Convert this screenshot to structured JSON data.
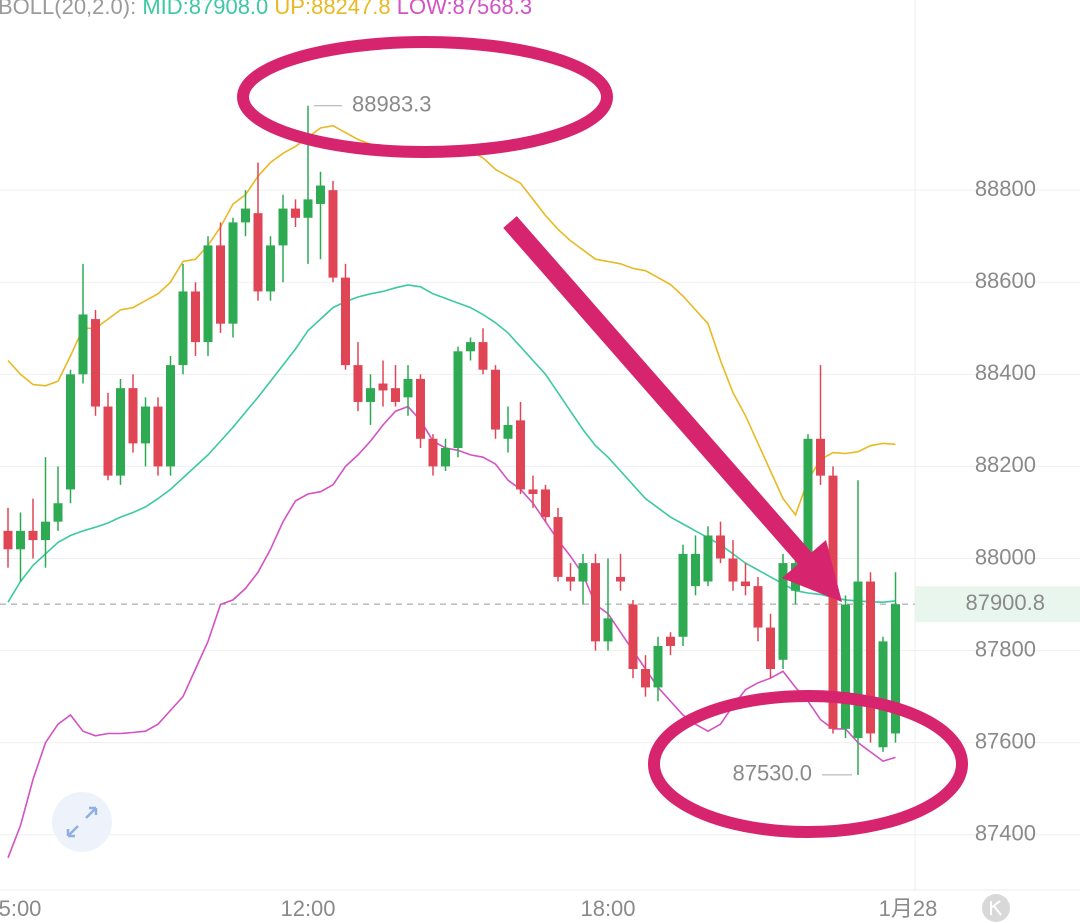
{
  "chart_data": {
    "type": "candlestick",
    "indicator": {
      "label": "BOLL(20,2.0):",
      "items": [
        "MID:87908.0",
        "UP:88247.8",
        "LOW:87568.3"
      ]
    },
    "categories": [
      "5:00",
      null,
      null,
      null,
      null,
      null,
      null,
      null,
      null,
      null,
      null,
      null,
      null,
      null,
      null,
      null,
      null,
      null,
      null,
      null,
      null,
      null,
      null,
      null,
      "12:00",
      null,
      null,
      null,
      null,
      null,
      null,
      null,
      null,
      null,
      null,
      null,
      null,
      null,
      null,
      null,
      null,
      null,
      null,
      null,
      null,
      null,
      null,
      null,
      "18:00",
      null,
      null,
      null,
      null,
      null,
      null,
      null,
      null,
      null,
      null,
      null,
      null,
      null,
      null,
      null,
      null,
      null,
      null,
      null,
      null,
      null,
      null,
      null,
      "1月28"
    ],
    "candles": {
      "up_color": "#2eaa53",
      "down_color": "#e04556",
      "open": [
        88060,
        88020,
        88060,
        88040,
        88080,
        88150,
        88400,
        88520,
        88330,
        88180,
        88370,
        88250,
        88330,
        88200,
        88420,
        88580,
        88470,
        88680,
        88510,
        88730,
        88750,
        88580,
        88680,
        88760,
        88740,
        88770,
        88800,
        88610,
        88420,
        88340,
        88380,
        88370,
        88350,
        88390,
        88260,
        88200,
        88240,
        88450,
        88470,
        88410,
        88260,
        88300,
        88150,
        88150,
        88090,
        87960,
        87950,
        87990,
        87820,
        87960,
        87900,
        87760,
        87720,
        87830,
        87830,
        87940,
        87950,
        88050,
        88000,
        87950,
        87940,
        87850,
        87780,
        87930,
        87960,
        88260,
        88180,
        87630,
        87610,
        87950,
        87590,
        87620,
        null
      ],
      "high": [
        88110,
        88100,
        88130,
        88220,
        88200,
        88410,
        88640,
        88540,
        88360,
        88390,
        88400,
        88350,
        88350,
        88440,
        88640,
        88600,
        88700,
        88730,
        88740,
        88800,
        88860,
        88700,
        88790,
        88780,
        88983.3,
        88840,
        88820,
        88640,
        88470,
        88400,
        88430,
        88420,
        88420,
        88400,
        88270,
        88260,
        88460,
        88480,
        88500,
        88420,
        88330,
        88340,
        88180,
        88160,
        88110,
        87990,
        88010,
        88010,
        88000,
        88010,
        87910,
        87790,
        87830,
        87840,
        88030,
        88050,
        88070,
        88080,
        88040,
        87990,
        87960,
        87880,
        88010,
        88020,
        88270,
        88420,
        88200,
        87920,
        88170,
        87970,
        87830,
        87970,
        null
      ],
      "low": [
        87980,
        87950,
        88000,
        87980,
        88060,
        88120,
        88380,
        88310,
        88170,
        88160,
        88230,
        88200,
        88180,
        88180,
        88400,
        88440,
        88440,
        88490,
        88480,
        88700,
        88560,
        88560,
        88600,
        88720,
        88640,
        88650,
        88600,
        88410,
        88320,
        88290,
        88330,
        88330,
        88310,
        88240,
        88180,
        88190,
        88220,
        88430,
        88400,
        88260,
        88230,
        88140,
        88110,
        88080,
        87950,
        87930,
        87900,
        87800,
        87800,
        87930,
        87740,
        87700,
        87690,
        87790,
        87810,
        87920,
        87940,
        87990,
        87930,
        87920,
        87820,
        87740,
        87760,
        87900,
        87950,
        88160,
        87620,
        87610,
        87530,
        87600,
        87580,
        87600,
        null
      ],
      "close": [
        88020,
        88060,
        88040,
        88080,
        88120,
        88400,
        88530,
        88330,
        88180,
        88370,
        88250,
        88330,
        88200,
        88420,
        88580,
        88470,
        88680,
        88510,
        88730,
        88760,
        88580,
        88680,
        88760,
        88740,
        88780,
        88810,
        88610,
        88420,
        88340,
        88370,
        88365,
        88340,
        88390,
        88260,
        88200,
        88240,
        88450,
        88470,
        88410,
        88280,
        88290,
        88150,
        88140,
        88090,
        87960,
        87950,
        87990,
        87820,
        87870,
        87950,
        87760,
        87720,
        87810,
        87810,
        88010,
        88010,
        88050,
        88000,
        87950,
        87940,
        87850,
        87760,
        87990,
        87990,
        88260,
        88180,
        87630,
        87900,
        87950,
        87620,
        87820,
        87900.8,
        null
      ]
    },
    "series": [
      {
        "color": "#e8b923",
        "values": [
          88430,
          88400,
          88378,
          88375,
          88385,
          88440,
          88500,
          88500,
          88520,
          88540,
          88545,
          88560,
          88575,
          88600,
          88645,
          88650,
          88680,
          88720,
          88770,
          88790,
          88830,
          88860,
          88880,
          88895,
          88915,
          88935,
          88940,
          88925,
          88910,
          88900,
          88895,
          88888,
          88880,
          88872,
          88875,
          88882,
          88888,
          88885,
          88870,
          88845,
          88830,
          88815,
          88780,
          88745,
          88715,
          88690,
          88670,
          88650,
          88645,
          88640,
          88630,
          88625,
          88610,
          88595,
          88570,
          88540,
          88510,
          88430,
          88360,
          88310,
          88250,
          88190,
          88130,
          88095,
          88170,
          88215,
          88230,
          88228,
          88232,
          88245,
          88250,
          88248,
          null
        ]
      },
      {
        "color": "#3cc9a2",
        "values": [
          87905,
          87950,
          87985,
          88010,
          88035,
          88050,
          88060,
          88068,
          88077,
          88090,
          88100,
          88112,
          88130,
          88150,
          88175,
          88200,
          88225,
          88255,
          88285,
          88318,
          88350,
          88385,
          88420,
          88455,
          88495,
          88520,
          88545,
          88558,
          88568,
          88575,
          88580,
          88588,
          88594,
          88590,
          88575,
          88565,
          88555,
          88545,
          88530,
          88512,
          88490,
          88460,
          88430,
          88400,
          88360,
          88320,
          88280,
          88245,
          88220,
          88190,
          88160,
          88130,
          88110,
          88090,
          88075,
          88060,
          88045,
          88030,
          88010,
          87990,
          87975,
          87960,
          87945,
          87930,
          87925,
          87922,
          87915,
          87910,
          87908,
          87906,
          87905,
          87908,
          null
        ]
      },
      {
        "color": "#d452c4",
        "values": [
          87350,
          87420,
          87520,
          87600,
          87640,
          87660,
          87625,
          87615,
          87620,
          87620,
          87622,
          87625,
          87640,
          87670,
          87700,
          87760,
          87820,
          87900,
          87910,
          87935,
          87970,
          88020,
          88080,
          88125,
          88140,
          88145,
          88160,
          88200,
          88225,
          88255,
          88290,
          88320,
          88330,
          88300,
          88255,
          88240,
          88235,
          88225,
          88220,
          88205,
          88170,
          88150,
          88120,
          88080,
          88040,
          88005,
          87965,
          87900,
          87880,
          87840,
          87800,
          87760,
          87720,
          87690,
          87660,
          87640,
          87625,
          87640,
          87680,
          87715,
          87730,
          87740,
          87755,
          87720,
          87690,
          87650,
          87630,
          87630,
          87600,
          87580,
          87560,
          87568,
          null
        ]
      }
    ],
    "header_colors": [
      "#9a9a9a",
      "#3cc9a2",
      "#e8b923",
      "#d452c4"
    ],
    "ylim": [
      87280,
      89213
    ],
    "yticks": [
      87400,
      87600,
      87800,
      88000,
      88200,
      88400,
      88600,
      88800
    ],
    "grid": true,
    "annotations": [
      {
        "label": "88983.3",
        "value": 88983.3
      },
      {
        "label": "87530.0",
        "value": 87530.0
      }
    ],
    "last_price": {
      "label": "87900.8",
      "value": 87900.8,
      "color": "#2eaa53"
    }
  }
}
